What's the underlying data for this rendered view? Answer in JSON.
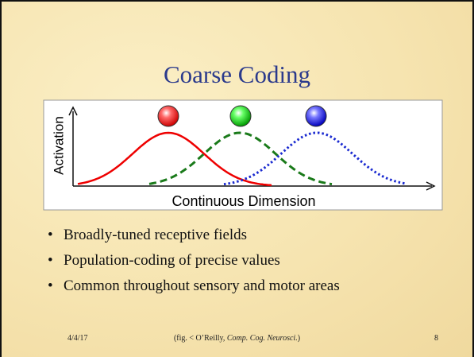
{
  "title": "Coarse Coding",
  "figure": {
    "y_label": "Activation",
    "x_label": "Continuous Dimension"
  },
  "bullets": [
    "Broadly-tuned receptive fields",
    "Population-coding of precise values",
    "Common throughout sensory and motor areas"
  ],
  "footer": {
    "date": "4/4/17",
    "citation": [
      "(fig. < O’Reilly, ",
      "Comp. Cog. Neurosci.",
      ")"
    ],
    "page": "8"
  }
}
